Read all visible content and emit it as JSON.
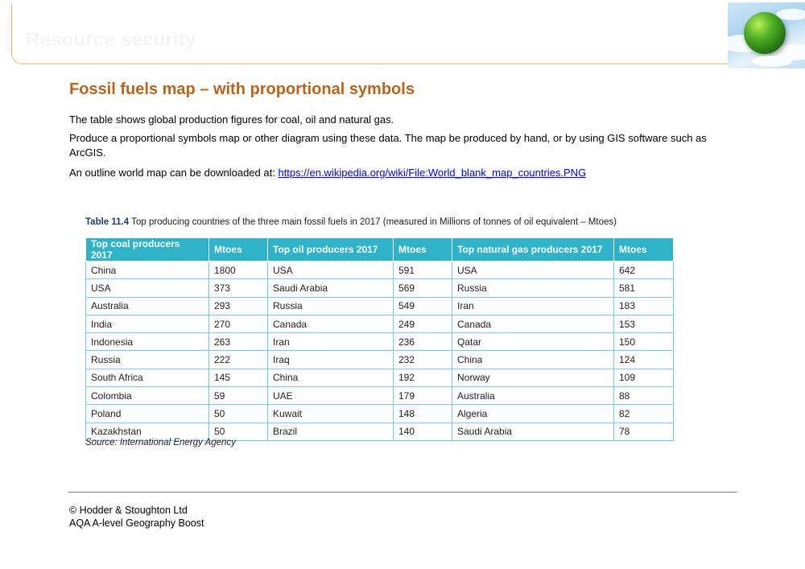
{
  "header": {
    "title": "Resource security"
  },
  "main": {
    "section_title": "Fossil fuels map – with proportional symbols",
    "para1": "The table shows global production figures for coal, oil and natural gas.",
    "para2": "Produce a proportional symbols map or other diagram using these data. The map be produced by hand, or by using GIS software such as ArcGIS.",
    "para3_prefix": "An outline world map can be downloaded at:",
    "para3_link": "https://en.wikipedia.org/wiki/File:World_blank_map_countries.PNG"
  },
  "table": {
    "caption_label": "Table 11.4",
    "caption_text": "Top producing countries of the three main fossil fuels in 2017 (measured in Millions of tonnes of oil equivalent – Mtoes)",
    "headers": [
      "Top coal producers 2017",
      "Mtoes",
      "Top oil producers 2017",
      "Mtoes",
      "Top natural gas producers 2017",
      "Mtoes"
    ],
    "rows": [
      [
        "China",
        "1800",
        "USA",
        "591",
        "USA",
        "642"
      ],
      [
        "USA",
        "373",
        "Saudi Arabia",
        "569",
        "Russia",
        "581"
      ],
      [
        "Australia",
        "293",
        "Russia",
        "549",
        "Iran",
        "183"
      ],
      [
        "India",
        "270",
        "Canada",
        "249",
        "Canada",
        "153"
      ],
      [
        "Indonesia",
        "263",
        "Iran",
        "236",
        "Qatar",
        "150"
      ],
      [
        "Russia",
        "222",
        "Iraq",
        "232",
        "China",
        "124"
      ],
      [
        "South Africa",
        "145",
        "China",
        "192",
        "Norway",
        "109"
      ],
      [
        "Colombia",
        "59",
        "UAE",
        "179",
        "Australia",
        "88"
      ],
      [
        "Poland",
        "50",
        "Kuwait",
        "148",
        "Algeria",
        "82"
      ],
      [
        "Kazakhstan",
        "50",
        "Brazil",
        "140",
        "Saudi Arabia",
        "78"
      ]
    ],
    "source": "Source: International Energy Agency",
    "header_color": "#2eb3c9"
  },
  "footer": {
    "line1": "© Hodder & Stoughton Ltd",
    "line2": "AQA A-level Geography Boost"
  },
  "colors": {
    "title": "#b5651d",
    "accent_border": "#f2b46a",
    "link": "#0000ee"
  },
  "icons": {
    "header_image": "globe-icon"
  }
}
